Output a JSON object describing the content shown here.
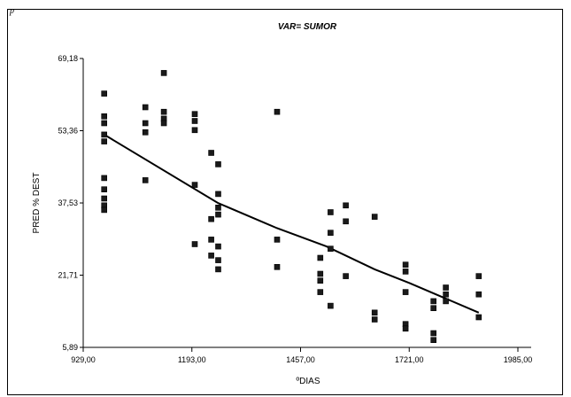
{
  "corner_mark": "p",
  "chart_data": {
    "type": "scatter",
    "title": "VAR= SUMOR",
    "xlabel": "ºDIAS",
    "ylabel": "PRED % DEST",
    "xlim": [
      929,
      1985
    ],
    "ylim": [
      5.89,
      69.18
    ],
    "x_ticks": [
      "929,00",
      "1193,00",
      "1457,00",
      "1721,00",
      "1985,00"
    ],
    "y_ticks": [
      "5,89",
      "21,71",
      "37,53",
      "53,36",
      "69,18"
    ],
    "grid": false,
    "series": [
      {
        "type": "scatter",
        "marker": "square",
        "color": "#1a1a1a",
        "points": [
          [
            980,
            61.5
          ],
          [
            980,
            56.5
          ],
          [
            980,
            55
          ],
          [
            980,
            52.5
          ],
          [
            980,
            51
          ],
          [
            980,
            43
          ],
          [
            980,
            40.5
          ],
          [
            980,
            38.5
          ],
          [
            980,
            37
          ],
          [
            980,
            36
          ],
          [
            1080,
            58.5
          ],
          [
            1080,
            55
          ],
          [
            1080,
            53
          ],
          [
            1080,
            42.5
          ],
          [
            1125,
            66
          ],
          [
            1125,
            57.5
          ],
          [
            1125,
            56
          ],
          [
            1125,
            55
          ],
          [
            1200,
            57
          ],
          [
            1200,
            55.5
          ],
          [
            1200,
            53.5
          ],
          [
            1200,
            41.5
          ],
          [
            1200,
            28.5
          ],
          [
            1240,
            48.5
          ],
          [
            1240,
            34
          ],
          [
            1240,
            29.5
          ],
          [
            1240,
            26
          ],
          [
            1257,
            46
          ],
          [
            1257,
            39.5
          ],
          [
            1257,
            36.5
          ],
          [
            1257,
            35
          ],
          [
            1257,
            28
          ],
          [
            1257,
            25
          ],
          [
            1257,
            23
          ],
          [
            1400,
            57.5
          ],
          [
            1400,
            29.5
          ],
          [
            1400,
            23.5
          ],
          [
            1505,
            25.5
          ],
          [
            1505,
            22
          ],
          [
            1505,
            20.5
          ],
          [
            1505,
            18
          ],
          [
            1530,
            35.5
          ],
          [
            1530,
            31
          ],
          [
            1530,
            27.5
          ],
          [
            1530,
            15
          ],
          [
            1567,
            37
          ],
          [
            1567,
            33.5
          ],
          [
            1567,
            21.5
          ],
          [
            1637,
            34.5
          ],
          [
            1637,
            13.5
          ],
          [
            1637,
            12
          ],
          [
            1712,
            24
          ],
          [
            1712,
            22.5
          ],
          [
            1712,
            18
          ],
          [
            1712,
            11
          ],
          [
            1712,
            10
          ],
          [
            1780,
            16
          ],
          [
            1780,
            14.5
          ],
          [
            1780,
            9
          ],
          [
            1780,
            7.5
          ],
          [
            1810,
            19
          ],
          [
            1810,
            17.5
          ],
          [
            1810,
            16
          ],
          [
            1890,
            21.5
          ],
          [
            1890,
            17.5
          ],
          [
            1890,
            12.5
          ]
        ]
      },
      {
        "type": "line",
        "color": "#000000",
        "points": [
          [
            980,
            52.5
          ],
          [
            1257,
            37.5
          ],
          [
            1400,
            32
          ],
          [
            1520,
            28
          ],
          [
            1637,
            23
          ],
          [
            1721,
            20
          ],
          [
            1890,
            13.5
          ]
        ]
      }
    ]
  }
}
